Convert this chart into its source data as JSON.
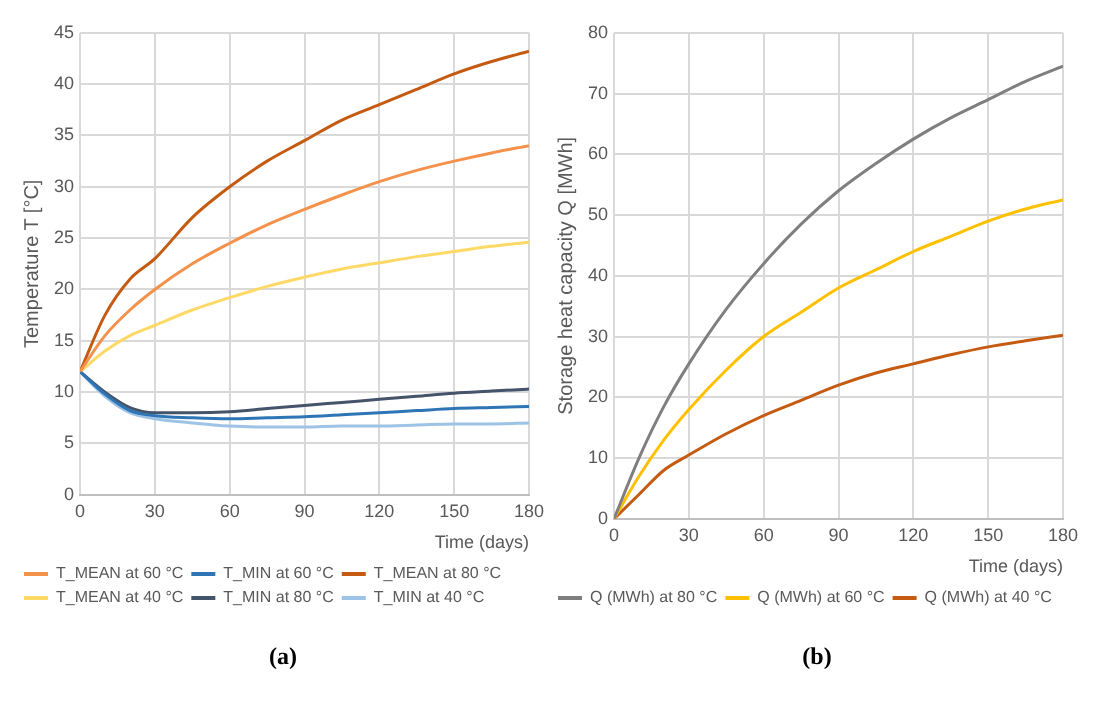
{
  "chart_data": [
    {
      "type": "line",
      "ylabel": "Temperature T [°C]",
      "xlabel": "Time (days)",
      "x": [
        0,
        10,
        20,
        30,
        45,
        60,
        75,
        90,
        105,
        120,
        135,
        150,
        165,
        180
      ],
      "series": [
        {
          "name": "T_MEAN at 60 °C",
          "color": "#f4914b",
          "values": [
            12,
            15.5,
            18,
            20,
            22.5,
            24.5,
            26.3,
            27.8,
            29.2,
            30.5,
            31.6,
            32.5,
            33.3,
            34
          ]
        },
        {
          "name": "T_MIN at 60 °C",
          "color": "#2e75b6",
          "values": [
            12,
            9.8,
            8.2,
            7.7,
            7.5,
            7.4,
            7.5,
            7.6,
            7.8,
            8,
            8.2,
            8.4,
            8.5,
            8.6
          ]
        },
        {
          "name": "T_MEAN at 80 °C",
          "color": "#c55a11",
          "values": [
            12,
            17.5,
            21,
            23,
            27,
            30,
            32.5,
            34.5,
            36.5,
            38,
            39.5,
            41,
            42.2,
            43.2
          ]
        },
        {
          "name": "T_MEAN at 40 °C",
          "color": "#ffd966",
          "values": [
            12,
            14,
            15.5,
            16.5,
            18,
            19.2,
            20.3,
            21.2,
            22,
            22.6,
            23.2,
            23.7,
            24.2,
            24.6
          ]
        },
        {
          "name": "T_MIN at 80 °C",
          "color": "#44546a",
          "values": [
            12,
            10,
            8.5,
            8,
            8,
            8.1,
            8.4,
            8.7,
            9,
            9.3,
            9.6,
            9.9,
            10.1,
            10.3
          ]
        },
        {
          "name": "T_MIN at 40 °C",
          "color": "#9dc3e6",
          "values": [
            12,
            9.6,
            8,
            7.4,
            7,
            6.7,
            6.6,
            6.6,
            6.7,
            6.7,
            6.8,
            6.9,
            6.9,
            7
          ]
        }
      ],
      "xlim": [
        0,
        180
      ],
      "xticks": [
        0,
        30,
        60,
        90,
        120,
        150,
        180
      ],
      "ylim": [
        0,
        45
      ],
      "yticks": [
        0,
        5,
        10,
        15,
        20,
        25,
        30,
        35,
        40,
        45
      ],
      "grid": true,
      "legend": "bottom",
      "marker": "none",
      "line_style": "solid",
      "annotations": [
        "(a)"
      ]
    },
    {
      "type": "line",
      "ylabel": "Storage heat capacity Q [MWh]",
      "xlabel": "Time (days)",
      "x": [
        0,
        10,
        20,
        30,
        45,
        60,
        75,
        90,
        105,
        120,
        135,
        150,
        165,
        180
      ],
      "series": [
        {
          "name": "Q (MWh) at 80 °C",
          "color": "#7f7f7f",
          "values": [
            0,
            10,
            18.5,
            25.5,
            34.5,
            42,
            48.5,
            54,
            58.5,
            62.5,
            66,
            69,
            72,
            74.5
          ]
        },
        {
          "name": "Q (MWh) at 60 °C",
          "color": "#ffc000",
          "values": [
            0,
            7,
            13,
            18,
            24.5,
            30,
            34,
            38,
            41,
            44,
            46.5,
            49,
            51,
            52.5
          ]
        },
        {
          "name": "Q (MWh) at 40 °C",
          "color": "#c55a11",
          "values": [
            0,
            4,
            8,
            10.5,
            14,
            17,
            19.5,
            22,
            24,
            25.5,
            27,
            28.3,
            29.3,
            30.2
          ]
        }
      ],
      "xlim": [
        0,
        180
      ],
      "xticks": [
        0,
        30,
        60,
        90,
        120,
        150,
        180
      ],
      "ylim": [
        0,
        80
      ],
      "yticks": [
        0,
        10,
        20,
        30,
        40,
        50,
        60,
        70,
        80
      ],
      "grid": true,
      "legend": "bottom",
      "marker": "none",
      "line_style": "solid",
      "annotations": [
        "(b)"
      ]
    }
  ]
}
